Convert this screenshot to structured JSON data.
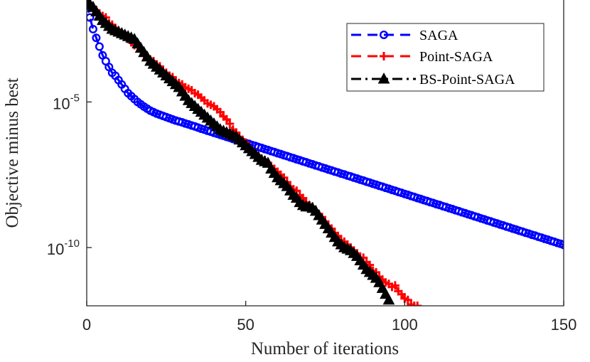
{
  "chart_data": {
    "type": "line",
    "xlabel": "Number of iterations",
    "ylabel": "Objective minus best",
    "xlim": [
      0,
      150
    ],
    "ylim_log10": [
      -12,
      -1.5
    ],
    "x_ticks": [
      0,
      50,
      100,
      150
    ],
    "x_tick_labels": [
      "0",
      "50",
      "100",
      "150"
    ],
    "y_ticks": [
      {
        "exponent": -5,
        "base": "10",
        "sup": "-5"
      },
      {
        "exponent": -10,
        "base": "10",
        "sup": "-10"
      }
    ],
    "legend_position": "top-right",
    "series": [
      {
        "name": "SAGA",
        "color": "#0000ff",
        "marker": "circle",
        "dash": "dashed",
        "x": [
          0,
          1,
          2,
          3,
          4,
          5,
          6,
          7,
          8,
          9,
          10,
          11,
          12,
          13,
          14,
          15,
          16,
          17,
          18,
          19,
          20,
          21,
          22,
          23,
          24,
          25,
          26,
          27,
          28,
          29,
          30,
          31,
          32,
          33,
          34,
          35,
          36,
          37,
          38,
          39,
          40,
          41,
          42,
          43,
          44,
          45,
          46,
          47,
          48,
          49,
          50,
          51,
          52,
          53,
          54,
          55,
          56,
          57,
          58,
          59,
          60,
          61,
          62,
          63,
          64,
          65,
          66,
          67,
          68,
          69,
          70,
          71,
          72,
          73,
          74,
          75,
          76,
          77,
          78,
          79,
          80,
          81,
          82,
          83,
          84,
          85,
          86,
          87,
          88,
          89,
          90,
          91,
          92,
          93,
          94,
          95,
          96,
          97,
          98,
          99,
          100,
          101,
          102,
          103,
          104,
          105,
          106,
          107,
          108,
          109,
          110,
          111,
          112,
          113,
          114,
          115,
          116,
          117,
          118,
          119,
          120,
          121,
          122,
          123,
          124,
          125,
          126,
          127,
          128,
          129,
          130,
          131,
          132,
          133,
          134,
          135,
          136,
          137,
          138,
          139,
          140,
          141,
          142,
          143,
          144,
          145,
          146,
          147,
          148,
          149,
          150
        ],
        "log10_y": [
          -1.6,
          -2.1,
          -2.5,
          -2.8,
          -3.1,
          -3.4,
          -3.6,
          -3.8,
          -4.0,
          -4.1,
          -4.25,
          -4.4,
          -4.55,
          -4.7,
          -4.8,
          -4.9,
          -5.0,
          -5.08,
          -5.16,
          -5.23,
          -5.3,
          -5.35,
          -5.4,
          -5.44,
          -5.48,
          -5.52,
          -5.56,
          -5.6,
          -5.64,
          -5.67,
          -5.7,
          -5.74,
          -5.77,
          -5.81,
          -5.84,
          -5.88,
          -5.92,
          -5.95,
          -5.99,
          -6.02,
          -6.06,
          -6.09,
          -6.13,
          -6.16,
          -6.2,
          -6.23,
          -6.27,
          -6.3,
          -6.34,
          -6.37,
          -6.41,
          -6.44,
          -6.48,
          -6.51,
          -6.55,
          -6.58,
          -6.62,
          -6.65,
          -6.69,
          -6.72,
          -6.76,
          -6.79,
          -6.83,
          -6.86,
          -6.9,
          -6.93,
          -6.97,
          -7.0,
          -7.04,
          -7.07,
          -7.11,
          -7.14,
          -7.18,
          -7.21,
          -7.25,
          -7.28,
          -7.32,
          -7.35,
          -7.39,
          -7.42,
          -7.46,
          -7.49,
          -7.53,
          -7.56,
          -7.6,
          -7.63,
          -7.67,
          -7.7,
          -7.74,
          -7.77,
          -7.81,
          -7.84,
          -7.88,
          -7.91,
          -7.95,
          -7.98,
          -8.02,
          -8.05,
          -8.09,
          -8.12,
          -8.16,
          -8.19,
          -8.23,
          -8.26,
          -8.3,
          -8.33,
          -8.37,
          -8.4,
          -8.44,
          -8.47,
          -8.51,
          -8.54,
          -8.58,
          -8.61,
          -8.65,
          -8.68,
          -8.72,
          -8.75,
          -8.79,
          -8.82,
          -8.86,
          -8.89,
          -8.93,
          -8.96,
          -9.0,
          -9.03,
          -9.07,
          -9.1,
          -9.14,
          -9.17,
          -9.21,
          -9.24,
          -9.28,
          -9.31,
          -9.35,
          -9.38,
          -9.42,
          -9.45,
          -9.49,
          -9.52,
          -9.56,
          -9.59,
          -9.63,
          -9.66,
          -9.7,
          -9.73,
          -9.77,
          -9.8,
          -9.84,
          -9.87,
          -9.91
        ]
      },
      {
        "name": "Point-SAGA",
        "color": "#ff0000",
        "marker": "plus",
        "dash": "dashed",
        "x": [
          0,
          1,
          2,
          3,
          4,
          5,
          6,
          7,
          8,
          9,
          10,
          11,
          12,
          13,
          14,
          15,
          16,
          17,
          18,
          19,
          20,
          21,
          22,
          23,
          24,
          25,
          26,
          27,
          28,
          29,
          30,
          31,
          32,
          33,
          34,
          35,
          36,
          37,
          38,
          39,
          40,
          41,
          42,
          43,
          44,
          45,
          46,
          47,
          48,
          49,
          50,
          51,
          52,
          53,
          54,
          55,
          56,
          57,
          58,
          59,
          60,
          61,
          62,
          63,
          64,
          65,
          66,
          67,
          68,
          69,
          70,
          71,
          72,
          73,
          74,
          75,
          76,
          77,
          78,
          79,
          80,
          81,
          82,
          83,
          84,
          85,
          86,
          87,
          88,
          89,
          90,
          91,
          92,
          93,
          94,
          95,
          96,
          97,
          98,
          99,
          100,
          101,
          102,
          103,
          104
        ],
        "log10_y": [
          -1.58,
          -1.62,
          -1.8,
          -1.85,
          -2.0,
          -2.05,
          -2.1,
          -2.3,
          -2.35,
          -2.5,
          -2.55,
          -2.62,
          -2.75,
          -2.8,
          -2.95,
          -3.05,
          -3.1,
          -3.25,
          -3.32,
          -3.45,
          -3.55,
          -3.6,
          -3.72,
          -3.78,
          -3.95,
          -4.0,
          -4.1,
          -4.15,
          -4.3,
          -4.35,
          -4.4,
          -4.5,
          -4.55,
          -4.6,
          -4.7,
          -4.75,
          -4.85,
          -4.95,
          -5.05,
          -5.1,
          -5.15,
          -5.25,
          -5.35,
          -5.5,
          -5.6,
          -5.75,
          -5.95,
          -6.05,
          -6.2,
          -6.3,
          -6.4,
          -6.55,
          -6.65,
          -6.75,
          -6.9,
          -6.95,
          -7.0,
          -7.1,
          -7.2,
          -7.3,
          -7.4,
          -7.5,
          -7.6,
          -7.75,
          -7.9,
          -8.0,
          -8.05,
          -8.2,
          -8.3,
          -8.45,
          -8.55,
          -8.6,
          -8.75,
          -8.85,
          -8.95,
          -9.1,
          -9.25,
          -9.35,
          -9.5,
          -9.6,
          -9.75,
          -9.8,
          -9.9,
          -10.0,
          -10.1,
          -10.2,
          -10.35,
          -10.35,
          -10.5,
          -10.6,
          -10.8,
          -10.85,
          -11.0,
          -11.1,
          -11.2,
          -11.25,
          -11.35,
          -11.3,
          -11.5,
          -11.6,
          -11.75,
          -11.8,
          -11.95,
          -12.0,
          -12.0
        ]
      },
      {
        "name": "BS-Point-SAGA",
        "color": "#000000",
        "marker": "triangle",
        "dash": "dashdot",
        "x": [
          0,
          1,
          2,
          3,
          4,
          5,
          6,
          7,
          8,
          9,
          10,
          11,
          12,
          13,
          14,
          15,
          16,
          17,
          18,
          19,
          20,
          21,
          22,
          23,
          24,
          25,
          26,
          27,
          28,
          29,
          30,
          31,
          32,
          33,
          34,
          35,
          36,
          37,
          38,
          39,
          40,
          41,
          42,
          43,
          44,
          45,
          46,
          47,
          48,
          49,
          50,
          51,
          52,
          53,
          54,
          55,
          56,
          57,
          58,
          59,
          60,
          61,
          62,
          63,
          64,
          65,
          66,
          67,
          68,
          69,
          70,
          71,
          72,
          73,
          74,
          75,
          76,
          77,
          78,
          79,
          80,
          81,
          82,
          83,
          84,
          85,
          86,
          87,
          88,
          89,
          90,
          91,
          92,
          93,
          94,
          95
        ],
        "log10_y": [
          -1.55,
          -1.65,
          -1.75,
          -1.9,
          -2.05,
          -2.2,
          -2.3,
          -2.4,
          -2.5,
          -2.55,
          -2.6,
          -2.65,
          -2.7,
          -2.75,
          -2.8,
          -2.85,
          -3.0,
          -3.15,
          -3.3,
          -3.45,
          -3.6,
          -3.7,
          -3.8,
          -3.9,
          -4.0,
          -4.1,
          -4.2,
          -4.3,
          -4.4,
          -4.5,
          -4.65,
          -4.8,
          -4.95,
          -5.05,
          -5.15,
          -5.25,
          -5.35,
          -5.45,
          -5.55,
          -5.65,
          -5.75,
          -5.85,
          -5.95,
          -6.0,
          -6.05,
          -6.1,
          -6.15,
          -6.2,
          -6.3,
          -6.4,
          -6.5,
          -6.6,
          -6.7,
          -6.8,
          -6.9,
          -7.0,
          -7.05,
          -7.1,
          -7.3,
          -7.45,
          -7.6,
          -7.7,
          -7.8,
          -7.9,
          -8.05,
          -8.2,
          -8.3,
          -8.45,
          -8.55,
          -8.6,
          -8.6,
          -8.65,
          -8.75,
          -8.9,
          -9.05,
          -9.2,
          -9.35,
          -9.5,
          -9.65,
          -9.8,
          -9.9,
          -10.0,
          -10.05,
          -10.1,
          -10.2,
          -10.3,
          -10.45,
          -10.6,
          -10.75,
          -10.85,
          -10.95,
          -11.05,
          -11.2,
          -11.4,
          -11.6,
          -11.8
        ]
      }
    ]
  }
}
